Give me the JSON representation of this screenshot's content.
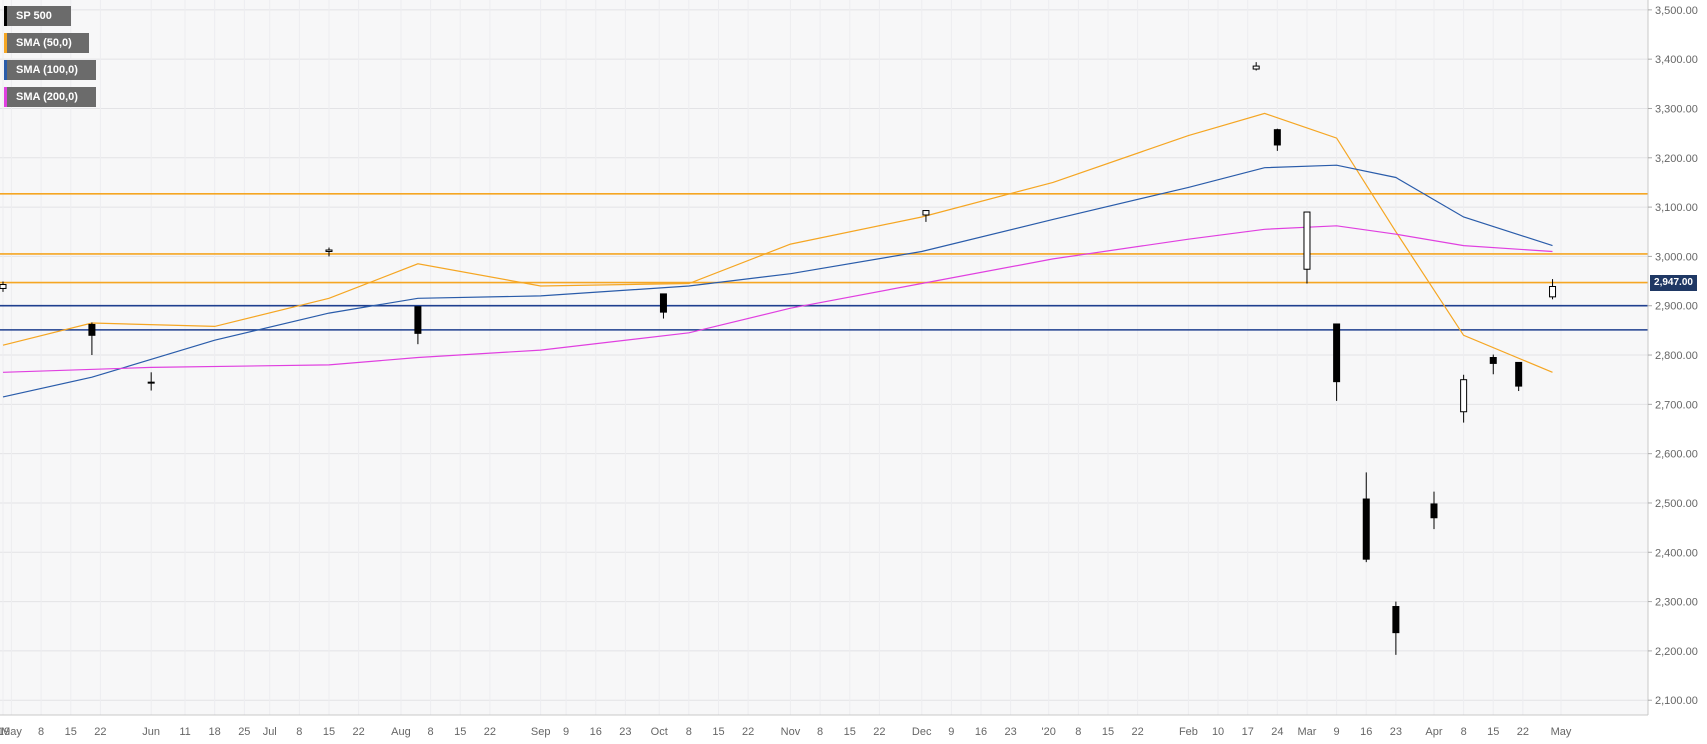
{
  "legend": [
    {
      "label": "SP 500",
      "color": "#000000"
    },
    {
      "label": "SMA (50,0)",
      "color": "#f5a623"
    },
    {
      "label": "SMA (100,0)",
      "color": "#2a5caa"
    },
    {
      "label": "SMA (200,0)",
      "color": "#e040e0"
    }
  ],
  "price_tag": "2,947.00",
  "chart_data": {
    "type": "candlestick",
    "title": "",
    "xlabel": "",
    "ylabel": "",
    "ylim": [
      2070,
      3520
    ],
    "y_ticks": [
      "2,100.00",
      "2,200.00",
      "2,300.00",
      "2,400.00",
      "2,500.00",
      "2,600.00",
      "2,700.00",
      "2,800.00",
      "2,900.00",
      "3,000.00",
      "3,100.00",
      "3,200.00",
      "3,300.00",
      "3,400.00",
      "3,500.00"
    ],
    "y_tick_values": [
      2100,
      2200,
      2300,
      2400,
      2500,
      2600,
      2700,
      2800,
      2900,
      3000,
      3100,
      3200,
      3300,
      3400,
      3500
    ],
    "x_tick_labels": [
      {
        "date": "2019-04-29",
        "label": "'19"
      },
      {
        "date": "2019-05-01",
        "label": "May"
      },
      {
        "date": "2019-05-08",
        "label": "8"
      },
      {
        "date": "2019-05-15",
        "label": "15"
      },
      {
        "date": "2019-05-22",
        "label": "22"
      },
      {
        "date": "2019-06-03",
        "label": "Jun"
      },
      {
        "date": "2019-06-11",
        "label": "11"
      },
      {
        "date": "2019-06-18",
        "label": "18"
      },
      {
        "date": "2019-06-25",
        "label": "25"
      },
      {
        "date": "2019-07-01",
        "label": "Jul"
      },
      {
        "date": "2019-07-08",
        "label": "8"
      },
      {
        "date": "2019-07-15",
        "label": "15"
      },
      {
        "date": "2019-07-22",
        "label": "22"
      },
      {
        "date": "2019-08-01",
        "label": "Aug"
      },
      {
        "date": "2019-08-08",
        "label": "8"
      },
      {
        "date": "2019-08-15",
        "label": "15"
      },
      {
        "date": "2019-08-22",
        "label": "22"
      },
      {
        "date": "2019-09-03",
        "label": "Sep"
      },
      {
        "date": "2019-09-09",
        "label": "9"
      },
      {
        "date": "2019-09-16",
        "label": "16"
      },
      {
        "date": "2019-09-23",
        "label": "23"
      },
      {
        "date": "2019-10-01",
        "label": "Oct"
      },
      {
        "date": "2019-10-08",
        "label": "8"
      },
      {
        "date": "2019-10-15",
        "label": "15"
      },
      {
        "date": "2019-10-22",
        "label": "22"
      },
      {
        "date": "2019-11-01",
        "label": "Nov"
      },
      {
        "date": "2019-11-08",
        "label": "8"
      },
      {
        "date": "2019-11-15",
        "label": "15"
      },
      {
        "date": "2019-11-22",
        "label": "22"
      },
      {
        "date": "2019-12-02",
        "label": "Dec"
      },
      {
        "date": "2019-12-09",
        "label": "9"
      },
      {
        "date": "2019-12-16",
        "label": "16"
      },
      {
        "date": "2019-12-23",
        "label": "23"
      },
      {
        "date": "2020-01-01",
        "label": "'20"
      },
      {
        "date": "2020-01-08",
        "label": "8"
      },
      {
        "date": "2020-01-15",
        "label": "15"
      },
      {
        "date": "2020-01-22",
        "label": "22"
      },
      {
        "date": "2020-02-03",
        "label": "Feb"
      },
      {
        "date": "2020-02-10",
        "label": "10"
      },
      {
        "date": "2020-02-17",
        "label": "17"
      },
      {
        "date": "2020-02-24",
        "label": "24"
      },
      {
        "date": "2020-03-02",
        "label": "Mar"
      },
      {
        "date": "2020-03-09",
        "label": "9"
      },
      {
        "date": "2020-03-16",
        "label": "16"
      },
      {
        "date": "2020-03-23",
        "label": "23"
      },
      {
        "date": "2020-04-01",
        "label": "Apr"
      },
      {
        "date": "2020-04-08",
        "label": "8"
      },
      {
        "date": "2020-04-15",
        "label": "15"
      },
      {
        "date": "2020-04-22",
        "label": "22"
      },
      {
        "date": "2020-05-01",
        "label": "May"
      }
    ],
    "horizontal_levels": [
      {
        "value": 3127,
        "color": "#f5a623"
      },
      {
        "value": 3005,
        "color": "#f5a623"
      },
      {
        "value": 2947,
        "color": "#f5a623"
      },
      {
        "value": 2900,
        "color": "#1f3f8f"
      },
      {
        "value": 2851,
        "color": "#1f3f8f"
      }
    ],
    "last_price": 2947,
    "candles": [
      {
        "date": "2019-04-29",
        "open": 2935,
        "high": 2949,
        "low": 2928,
        "close": 2943
      },
      {
        "date": "2019-05-20",
        "open": 2862,
        "high": 2866,
        "low": 2800,
        "close": 2840
      },
      {
        "date": "2019-06-03",
        "open": 2745,
        "high": 2765,
        "low": 2728,
        "close": 2744
      },
      {
        "date": "2019-07-15",
        "open": 3010,
        "high": 3018,
        "low": 3000,
        "close": 3013
      },
      {
        "date": "2019-08-05",
        "open": 2898,
        "high": 2898,
        "low": 2822,
        "close": 2844
      },
      {
        "date": "2019-10-02",
        "open": 2924,
        "high": 2924,
        "low": 2874,
        "close": 2887
      },
      {
        "date": "2019-12-03",
        "open": 3084,
        "high": 3094,
        "low": 3070,
        "close": 3093
      },
      {
        "date": "2020-02-19",
        "open": 3380,
        "high": 3394,
        "low": 3377,
        "close": 3386
      },
      {
        "date": "2020-02-24",
        "open": 3257,
        "high": 3259,
        "low": 3214,
        "close": 3226
      },
      {
        "date": "2020-03-02",
        "open": 2974,
        "high": 3090,
        "low": 2945,
        "close": 3090
      },
      {
        "date": "2020-03-09",
        "open": 2863,
        "high": 2863,
        "low": 2707,
        "close": 2746
      },
      {
        "date": "2020-03-16",
        "open": 2508,
        "high": 2562,
        "low": 2380,
        "close": 2386
      },
      {
        "date": "2020-03-23",
        "open": 2290,
        "high": 2300,
        "low": 2192,
        "close": 2237
      },
      {
        "date": "2020-04-01",
        "open": 2498,
        "high": 2523,
        "low": 2447,
        "close": 2470
      },
      {
        "date": "2020-04-08",
        "open": 2685,
        "high": 2760,
        "low": 2663,
        "close": 2750
      },
      {
        "date": "2020-04-15",
        "open": 2795,
        "high": 2801,
        "low": 2761,
        "close": 2783
      },
      {
        "date": "2020-04-21",
        "open": 2785,
        "high": 2785,
        "low": 2727,
        "close": 2737
      },
      {
        "date": "2020-04-29",
        "open": 2918,
        "high": 2954,
        "low": 2913,
        "close": 2939
      }
    ],
    "series": [
      {
        "name": "SMA (50,0)",
        "color": "#f5a623",
        "points": [
          [
            "2019-04-29",
            2820
          ],
          [
            "2019-05-20",
            2865
          ],
          [
            "2019-06-18",
            2858
          ],
          [
            "2019-07-15",
            2915
          ],
          [
            "2019-08-05",
            2985
          ],
          [
            "2019-09-03",
            2940
          ],
          [
            "2019-10-08",
            2945
          ],
          [
            "2019-11-01",
            3025
          ],
          [
            "2019-12-02",
            3080
          ],
          [
            "2020-01-02",
            3150
          ],
          [
            "2020-02-03",
            3245
          ],
          [
            "2020-02-21",
            3290
          ],
          [
            "2020-03-09",
            3240
          ],
          [
            "2020-03-23",
            3050
          ],
          [
            "2020-04-08",
            2840
          ],
          [
            "2020-04-29",
            2765
          ]
        ]
      },
      {
        "name": "SMA (100,0)",
        "color": "#2a5caa",
        "points": [
          [
            "2019-04-29",
            2715
          ],
          [
            "2019-05-20",
            2755
          ],
          [
            "2019-06-18",
            2830
          ],
          [
            "2019-07-15",
            2885
          ],
          [
            "2019-08-05",
            2915
          ],
          [
            "2019-09-03",
            2920
          ],
          [
            "2019-10-08",
            2940
          ],
          [
            "2019-11-01",
            2965
          ],
          [
            "2019-12-02",
            3010
          ],
          [
            "2020-01-02",
            3075
          ],
          [
            "2020-02-03",
            3140
          ],
          [
            "2020-02-21",
            3180
          ],
          [
            "2020-03-09",
            3185
          ],
          [
            "2020-03-23",
            3160
          ],
          [
            "2020-04-08",
            3080
          ],
          [
            "2020-04-29",
            3022
          ]
        ]
      },
      {
        "name": "SMA (200,0)",
        "color": "#e040e0",
        "points": [
          [
            "2019-04-29",
            2765
          ],
          [
            "2019-06-03",
            2775
          ],
          [
            "2019-07-15",
            2780
          ],
          [
            "2019-08-05",
            2795
          ],
          [
            "2019-09-03",
            2810
          ],
          [
            "2019-10-08",
            2845
          ],
          [
            "2019-11-01",
            2895
          ],
          [
            "2019-12-02",
            2945
          ],
          [
            "2020-01-02",
            2995
          ],
          [
            "2020-02-03",
            3035
          ],
          [
            "2020-02-21",
            3055
          ],
          [
            "2020-03-09",
            3062
          ],
          [
            "2020-03-23",
            3045
          ],
          [
            "2020-04-08",
            3022
          ],
          [
            "2020-04-29",
            3010
          ]
        ]
      }
    ],
    "grid": true,
    "legend_position": "top-left"
  }
}
